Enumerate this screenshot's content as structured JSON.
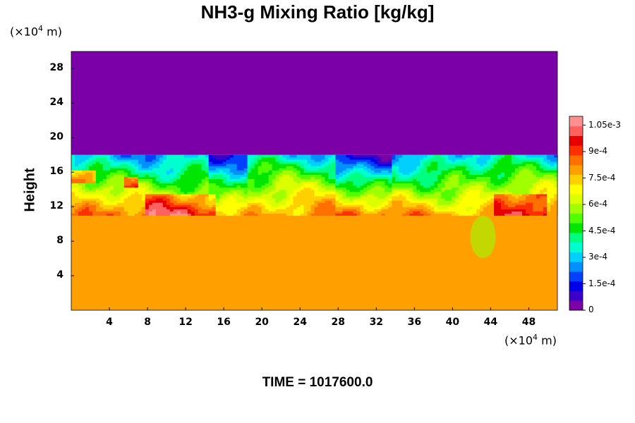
{
  "title": "NH3-g Mixing Ratio [kg/kg]",
  "time_label": "TIME = 1017600.0",
  "y_unit": {
    "prefix": "(×10",
    "exp": "4",
    "suffix": " m)"
  },
  "x_unit": {
    "prefix": "(×10",
    "exp": "4",
    "suffix": " m)"
  },
  "colors": {
    "upper_layer": "#7400a6",
    "lower_layer": "#dcff00"
  },
  "chart_data": {
    "type": "heatmap",
    "title": "NH3-g Mixing Ratio [kg/kg]",
    "ylabel": "Height",
    "xlabel": "",
    "xlim": [
      0,
      51
    ],
    "ylim": [
      0,
      30
    ],
    "x_ticks": [
      "4",
      "8",
      "12",
      "16",
      "20",
      "24",
      "28",
      "32",
      "36",
      "40",
      "44",
      "48"
    ],
    "y_ticks": [
      "4",
      "8",
      "12",
      "16",
      "20",
      "24",
      "28"
    ],
    "colorbar": {
      "range": [
        0,
        0.0011
      ],
      "tick_labels": [
        "0",
        "1.5e-4",
        "3e-4",
        "4.5e-4",
        "6e-4",
        "7.5e-4",
        "9e-4",
        "1.05e-3"
      ],
      "tick_values": [
        0,
        0.00015,
        0.0003,
        0.00045,
        0.0006,
        0.00075,
        0.0009,
        0.00105
      ],
      "colors": [
        "#7b00a8",
        "#3c00c8",
        "#0000e6",
        "#0040ff",
        "#0090ff",
        "#00d0ff",
        "#00ffd0",
        "#00ff80",
        "#00e600",
        "#50ff00",
        "#a0ff00",
        "#dcff00",
        "#ffff00",
        "#ffd000",
        "#ffa000",
        "#ff7000",
        "#ff3000",
        "#e60000",
        "#ff6060",
        "#ff9090"
      ]
    },
    "fields": {
      "above_18": 0.0,
      "below_11": 0.00078,
      "mixing_zone": [
        11,
        18
      ]
    }
  }
}
